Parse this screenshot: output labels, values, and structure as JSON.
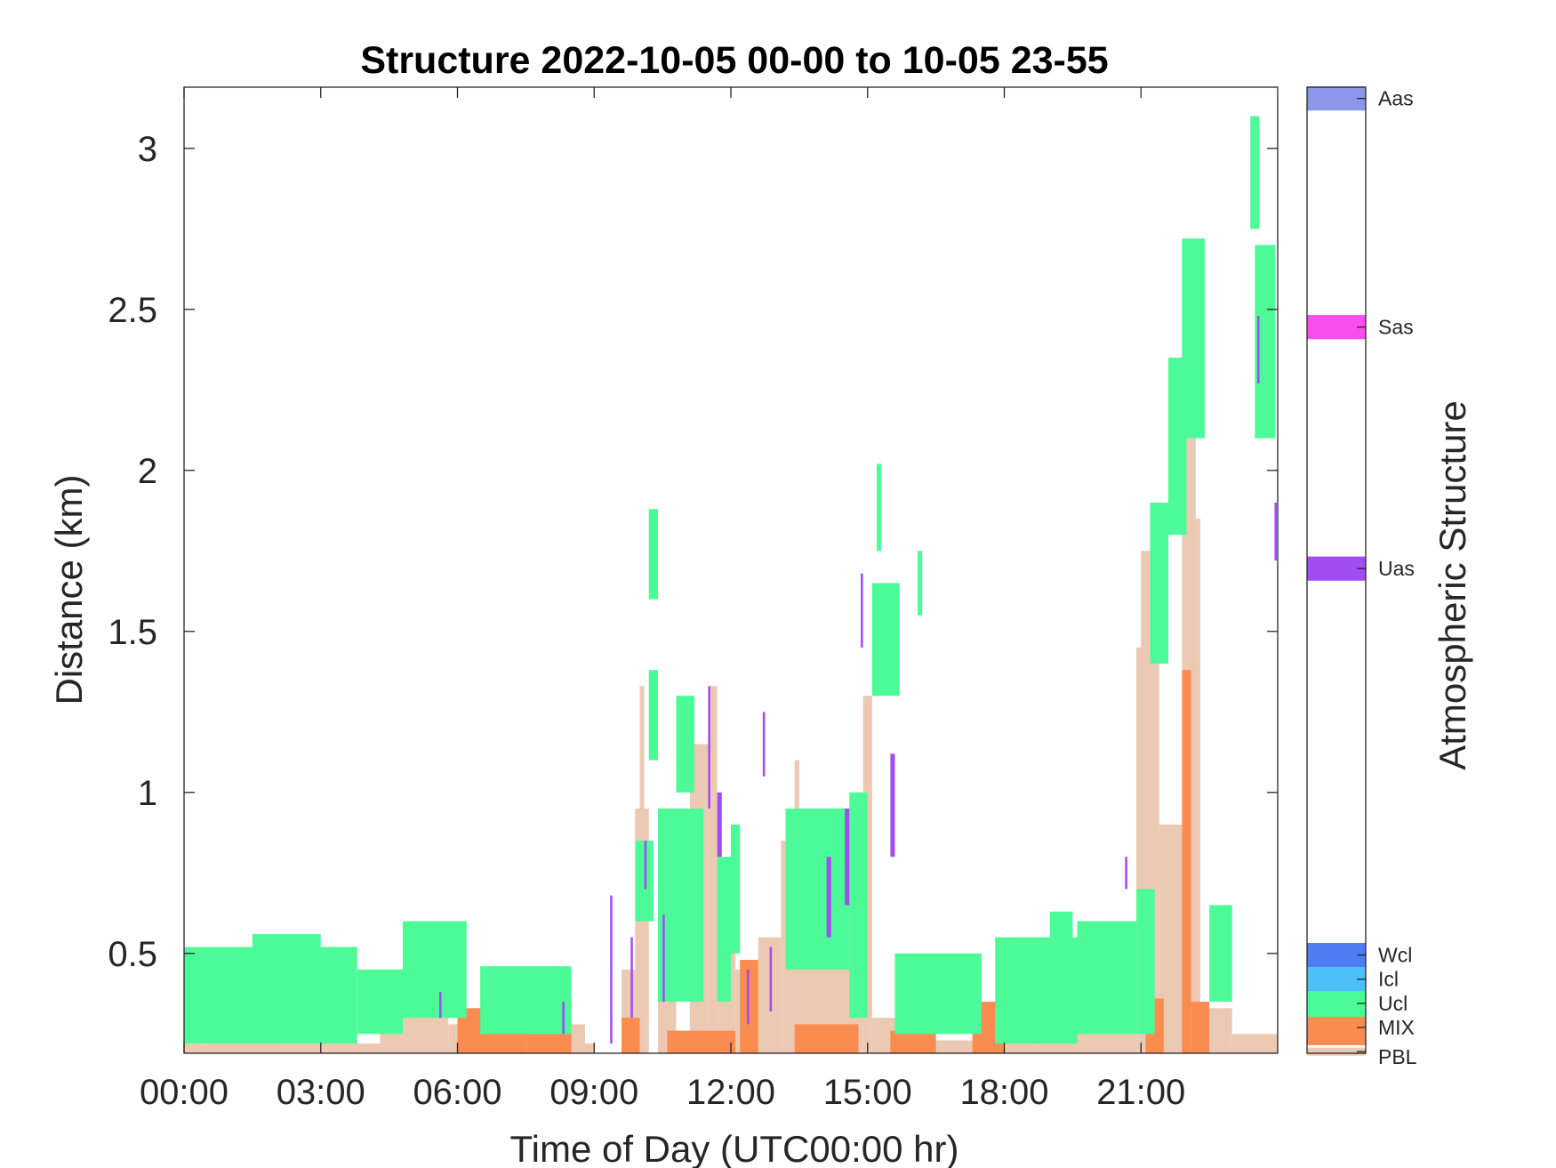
{
  "chart_data": {
    "type": "heatmap",
    "title": "Structure 2022-10-05 00-00 to 10-05 23-55",
    "xlabel": "Time of Day (UTC00:00 hr)",
    "ylabel": "Distance (km)",
    "xlim": [
      0,
      24
    ],
    "ylim": [
      0.19,
      3.19
    ],
    "x_ticks": [
      0,
      3,
      6,
      9,
      12,
      15,
      18,
      21
    ],
    "x_tick_labels": [
      "00:00",
      "03:00",
      "06:00",
      "09:00",
      "12:00",
      "15:00",
      "18:00",
      "21:00"
    ],
    "y_ticks": [
      0.5,
      1,
      1.5,
      2,
      2.5,
      3
    ],
    "y_tick_labels": [
      "0.5",
      "1",
      "1.5",
      "2",
      "2.5",
      "3"
    ],
    "grid": false,
    "colorbar": {
      "title": "Atmospheric Structure",
      "categories": [
        {
          "label": "PBL",
          "color": "#ECC9B3"
        },
        {
          "label": "MIX",
          "color": "#FB8C50"
        },
        {
          "label": "Ucl",
          "color": "#4DFA98"
        },
        {
          "label": "Icl",
          "color": "#4DC0FA"
        },
        {
          "label": "Wcl",
          "color": "#4E7DF3"
        },
        {
          "label": "Uas",
          "color": "#A24DF3"
        },
        {
          "label": "Sas",
          "color": "#FA4DEF"
        },
        {
          "label": "Aas",
          "color": "#8C96EB"
        }
      ]
    },
    "structure_segments": [
      {
        "class": "PBL",
        "t0": 0.0,
        "t1": 9.0,
        "base_km": 0.19,
        "top_km": 0.22
      },
      {
        "class": "PBL",
        "t0": 0.5,
        "t1": 2.0,
        "base_km": 0.19,
        "top_km": 0.28
      },
      {
        "class": "PBL",
        "t0": 4.3,
        "t1": 5.8,
        "base_km": 0.19,
        "top_km": 0.32
      },
      {
        "class": "PBL",
        "t0": 5.8,
        "t1": 8.8,
        "base_km": 0.19,
        "top_km": 0.28
      },
      {
        "class": "PBL",
        "t0": 9.6,
        "t1": 9.9,
        "base_km": 0.19,
        "top_km": 0.45
      },
      {
        "class": "PBL",
        "t0": 9.9,
        "t1": 10.2,
        "base_km": 0.19,
        "top_km": 0.95
      },
      {
        "class": "PBL",
        "t0": 10.0,
        "t1": 10.1,
        "base_km": 0.19,
        "top_km": 1.33
      },
      {
        "class": "PBL",
        "t0": 10.4,
        "t1": 10.8,
        "base_km": 0.19,
        "top_km": 0.75
      },
      {
        "class": "PBL",
        "t0": 11.1,
        "t1": 11.5,
        "base_km": 0.19,
        "top_km": 1.15
      },
      {
        "class": "PBL",
        "t0": 11.5,
        "t1": 11.7,
        "base_km": 0.19,
        "top_km": 1.33
      },
      {
        "class": "PBL",
        "t0": 11.7,
        "t1": 12.1,
        "base_km": 0.19,
        "top_km": 0.78
      },
      {
        "class": "PBL",
        "t0": 12.1,
        "t1": 12.6,
        "base_km": 0.19,
        "top_km": 0.45
      },
      {
        "class": "PBL",
        "t0": 12.6,
        "t1": 13.1,
        "base_km": 0.19,
        "top_km": 0.55
      },
      {
        "class": "PBL",
        "t0": 13.1,
        "t1": 13.5,
        "base_km": 0.19,
        "top_km": 0.85
      },
      {
        "class": "PBL",
        "t0": 13.4,
        "t1": 13.5,
        "base_km": 0.19,
        "top_km": 1.1
      },
      {
        "class": "PBL",
        "t0": 13.5,
        "t1": 14.5,
        "base_km": 0.19,
        "top_km": 0.78
      },
      {
        "class": "PBL",
        "t0": 14.5,
        "t1": 14.9,
        "base_km": 0.19,
        "top_km": 0.9
      },
      {
        "class": "PBL",
        "t0": 14.9,
        "t1": 15.1,
        "base_km": 0.19,
        "top_km": 1.3
      },
      {
        "class": "PBL",
        "t0": 15.1,
        "t1": 15.6,
        "base_km": 0.19,
        "top_km": 0.3
      },
      {
        "class": "PBL",
        "t0": 15.6,
        "t1": 18.7,
        "base_km": 0.19,
        "top_km": 0.23
      },
      {
        "class": "PBL",
        "t0": 18.7,
        "t1": 19.6,
        "base_km": 0.19,
        "top_km": 0.3
      },
      {
        "class": "PBL",
        "t0": 19.0,
        "t1": 19.3,
        "base_km": 0.19,
        "top_km": 0.42
      },
      {
        "class": "PBL",
        "t0": 19.6,
        "t1": 20.9,
        "base_km": 0.19,
        "top_km": 0.28
      },
      {
        "class": "PBL",
        "t0": 20.9,
        "t1": 21.4,
        "base_km": 0.19,
        "top_km": 1.45
      },
      {
        "class": "PBL",
        "t0": 21.0,
        "t1": 21.2,
        "base_km": 0.19,
        "top_km": 1.75
      },
      {
        "class": "PBL",
        "t0": 21.4,
        "t1": 21.9,
        "base_km": 0.19,
        "top_km": 0.9
      },
      {
        "class": "PBL",
        "t0": 21.9,
        "t1": 22.3,
        "base_km": 0.19,
        "top_km": 1.85
      },
      {
        "class": "PBL",
        "t0": 22.0,
        "t1": 22.2,
        "base_km": 0.19,
        "top_km": 2.38
      },
      {
        "class": "PBL",
        "t0": 22.3,
        "t1": 23.0,
        "base_km": 0.19,
        "top_km": 0.33
      },
      {
        "class": "PBL",
        "t0": 23.0,
        "t1": 24.0,
        "base_km": 0.19,
        "top_km": 0.25
      },
      {
        "class": "MIX",
        "t0": 6.0,
        "t1": 7.5,
        "base_km": 0.19,
        "top_km": 0.33
      },
      {
        "class": "MIX",
        "t0": 7.5,
        "t1": 8.5,
        "base_km": 0.19,
        "top_km": 0.25
      },
      {
        "class": "MIX",
        "t0": 9.6,
        "t1": 10.0,
        "base_km": 0.19,
        "top_km": 0.3
      },
      {
        "class": "MIX",
        "t0": 10.6,
        "t1": 12.1,
        "base_km": 0.19,
        "top_km": 0.26
      },
      {
        "class": "MIX",
        "t0": 12.2,
        "t1": 12.6,
        "base_km": 0.19,
        "top_km": 0.48
      },
      {
        "class": "MIX",
        "t0": 13.4,
        "t1": 14.8,
        "base_km": 0.19,
        "top_km": 0.28
      },
      {
        "class": "MIX",
        "t0": 15.5,
        "t1": 16.5,
        "base_km": 0.19,
        "top_km": 0.26
      },
      {
        "class": "MIX",
        "t0": 17.3,
        "t1": 18.0,
        "base_km": 0.19,
        "top_km": 0.35
      },
      {
        "class": "MIX",
        "t0": 21.1,
        "t1": 21.5,
        "base_km": 0.19,
        "top_km": 0.36
      },
      {
        "class": "MIX",
        "t0": 21.9,
        "t1": 22.1,
        "base_km": 0.19,
        "top_km": 1.38
      },
      {
        "class": "MIX",
        "t0": 22.1,
        "t1": 22.5,
        "base_km": 0.19,
        "top_km": 0.35
      },
      {
        "class": "Ucl",
        "t0": 0.0,
        "t1": 3.8,
        "base_km": 0.22,
        "top_km": 0.52
      },
      {
        "class": "Ucl",
        "t0": 1.5,
        "t1": 3.0,
        "base_km": 0.3,
        "top_km": 0.56
      },
      {
        "class": "Ucl",
        "t0": 3.8,
        "t1": 4.8,
        "base_km": 0.25,
        "top_km": 0.45
      },
      {
        "class": "Ucl",
        "t0": 4.8,
        "t1": 6.2,
        "base_km": 0.3,
        "top_km": 0.6
      },
      {
        "class": "Ucl",
        "t0": 6.5,
        "t1": 8.5,
        "base_km": 0.25,
        "top_km": 0.46
      },
      {
        "class": "Ucl",
        "t0": 10.2,
        "t1": 10.4,
        "base_km": 1.6,
        "top_km": 1.88
      },
      {
        "class": "Ucl",
        "t0": 10.2,
        "t1": 10.4,
        "base_km": 1.1,
        "top_km": 1.38
      },
      {
        "class": "Ucl",
        "t0": 9.9,
        "t1": 10.3,
        "base_km": 0.6,
        "top_km": 0.85
      },
      {
        "class": "Ucl",
        "t0": 10.4,
        "t1": 11.4,
        "base_km": 0.35,
        "top_km": 0.95
      },
      {
        "class": "Ucl",
        "t0": 10.8,
        "t1": 11.2,
        "base_km": 1.0,
        "top_km": 1.3
      },
      {
        "class": "Ucl",
        "t0": 11.7,
        "t1": 12.0,
        "base_km": 0.35,
        "top_km": 0.8
      },
      {
        "class": "Ucl",
        "t0": 12.0,
        "t1": 12.2,
        "base_km": 0.5,
        "top_km": 0.9
      },
      {
        "class": "Ucl",
        "t0": 13.2,
        "t1": 14.6,
        "base_km": 0.45,
        "top_km": 0.95
      },
      {
        "class": "Ucl",
        "t0": 14.6,
        "t1": 15.0,
        "base_km": 0.3,
        "top_km": 1.0
      },
      {
        "class": "Ucl",
        "t0": 15.1,
        "t1": 15.7,
        "base_km": 1.3,
        "top_km": 1.65
      },
      {
        "class": "Ucl",
        "t0": 15.2,
        "t1": 15.3,
        "base_km": 1.75,
        "top_km": 2.02
      },
      {
        "class": "Ucl",
        "t0": 16.1,
        "t1": 16.2,
        "base_km": 1.55,
        "top_km": 1.75
      },
      {
        "class": "Ucl",
        "t0": 15.6,
        "t1": 17.5,
        "base_km": 0.25,
        "top_km": 0.5
      },
      {
        "class": "Ucl",
        "t0": 17.8,
        "t1": 19.6,
        "base_km": 0.22,
        "top_km": 0.55
      },
      {
        "class": "Ucl",
        "t0": 19.0,
        "t1": 19.5,
        "base_km": 0.35,
        "top_km": 0.63
      },
      {
        "class": "Ucl",
        "t0": 19.6,
        "t1": 20.9,
        "base_km": 0.25,
        "top_km": 0.6
      },
      {
        "class": "Ucl",
        "t0": 20.9,
        "t1": 21.3,
        "base_km": 0.25,
        "top_km": 0.7
      },
      {
        "class": "Ucl",
        "t0": 21.2,
        "t1": 21.6,
        "base_km": 1.4,
        "top_km": 1.9
      },
      {
        "class": "Ucl",
        "t0": 21.6,
        "t1": 22.0,
        "base_km": 1.8,
        "top_km": 2.35
      },
      {
        "class": "Ucl",
        "t0": 21.9,
        "t1": 22.4,
        "base_km": 2.1,
        "top_km": 2.72
      },
      {
        "class": "Ucl",
        "t0": 22.5,
        "t1": 23.0,
        "base_km": 0.35,
        "top_km": 0.65
      },
      {
        "class": "Ucl",
        "t0": 23.4,
        "t1": 23.6,
        "base_km": 2.75,
        "top_km": 3.1
      },
      {
        "class": "Ucl",
        "t0": 23.5,
        "t1": 23.95,
        "base_km": 2.1,
        "top_km": 2.7
      },
      {
        "class": "Uas",
        "t0": 5.6,
        "t1": 5.65,
        "base_km": 0.3,
        "top_km": 0.38
      },
      {
        "class": "Uas",
        "t0": 8.3,
        "t1": 8.35,
        "base_km": 0.25,
        "top_km": 0.35
      },
      {
        "class": "Uas",
        "t0": 9.35,
        "t1": 9.4,
        "base_km": 0.22,
        "top_km": 0.68
      },
      {
        "class": "Uas",
        "t0": 9.8,
        "t1": 9.85,
        "base_km": 0.3,
        "top_km": 0.55
      },
      {
        "class": "Uas",
        "t0": 10.1,
        "t1": 10.15,
        "base_km": 0.7,
        "top_km": 0.85
      },
      {
        "class": "Uas",
        "t0": 10.5,
        "t1": 10.55,
        "base_km": 0.35,
        "top_km": 0.62
      },
      {
        "class": "Uas",
        "t0": 11.5,
        "t1": 11.55,
        "base_km": 0.95,
        "top_km": 1.33
      },
      {
        "class": "Uas",
        "t0": 11.7,
        "t1": 11.8,
        "base_km": 0.8,
        "top_km": 1.0
      },
      {
        "class": "Uas",
        "t0": 12.35,
        "t1": 12.4,
        "base_km": 0.28,
        "top_km": 0.45
      },
      {
        "class": "Uas",
        "t0": 12.7,
        "t1": 12.75,
        "base_km": 1.05,
        "top_km": 1.25
      },
      {
        "class": "Uas",
        "t0": 12.85,
        "t1": 12.9,
        "base_km": 0.32,
        "top_km": 0.52
      },
      {
        "class": "Uas",
        "t0": 14.1,
        "t1": 14.2,
        "base_km": 0.55,
        "top_km": 0.8
      },
      {
        "class": "Uas",
        "t0": 14.5,
        "t1": 14.6,
        "base_km": 0.65,
        "top_km": 0.95
      },
      {
        "class": "Uas",
        "t0": 14.85,
        "t1": 14.9,
        "base_km": 1.45,
        "top_km": 1.68
      },
      {
        "class": "Uas",
        "t0": 15.5,
        "t1": 15.6,
        "base_km": 0.8,
        "top_km": 1.12
      },
      {
        "class": "Uas",
        "t0": 20.65,
        "t1": 20.7,
        "base_km": 0.7,
        "top_km": 0.8
      },
      {
        "class": "Uas",
        "t0": 23.55,
        "t1": 23.6,
        "base_km": 2.27,
        "top_km": 2.48
      },
      {
        "class": "Uas",
        "t0": 23.93,
        "t1": 23.98,
        "base_km": 1.72,
        "top_km": 1.9
      }
    ]
  }
}
